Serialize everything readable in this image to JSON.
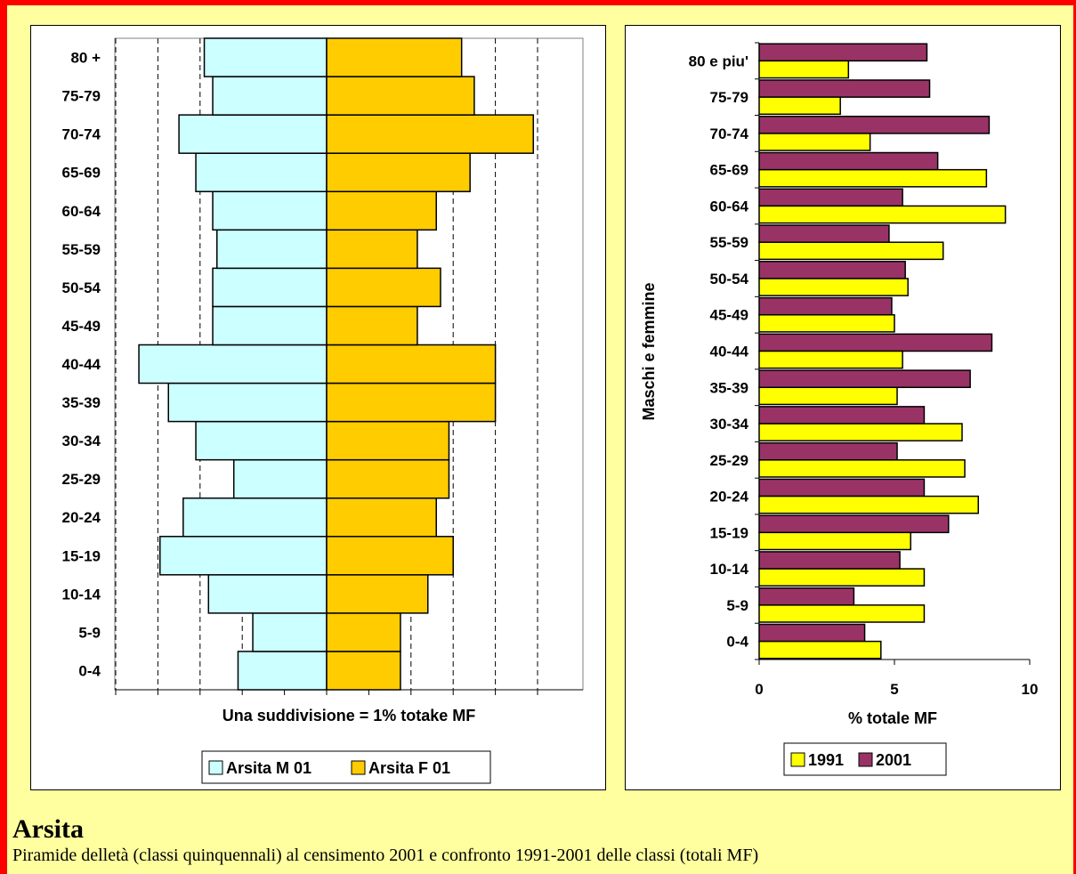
{
  "page": {
    "title": "Arsita",
    "subtitle": "Piramide delletà (classi quinquennali) al censimento 2001 e confronto 1991-2001 delle classi (totali MF)"
  },
  "colors": {
    "background": "#ffffa0",
    "border": "#ff0000",
    "male": "#ccffff",
    "female": "#ffcc00",
    "y1991": "#ffff00",
    "y2001": "#993366"
  },
  "chart_data": [
    {
      "type": "bar",
      "orientation": "horizontal",
      "layout": "population-pyramid",
      "categories": [
        "0-4",
        "5-9",
        "10-14",
        "15-19",
        "20-24",
        "25-29",
        "30-34",
        "35-39",
        "40-44",
        "45-49",
        "50-54",
        "55-59",
        "60-64",
        "65-69",
        "70-74",
        "75-79",
        "80 +"
      ],
      "series": [
        {
          "name": "Arsita M 01",
          "values": [
            2.1,
            1.75,
            2.8,
            3.95,
            3.4,
            2.2,
            3.1,
            3.75,
            4.45,
            2.7,
            2.7,
            2.6,
            2.7,
            3.1,
            3.5,
            2.7,
            2.9
          ]
        },
        {
          "name": "Arsita F 01",
          "values": [
            1.75,
            1.75,
            2.4,
            3.0,
            2.6,
            2.9,
            2.9,
            4.0,
            4.0,
            2.15,
            2.7,
            2.15,
            2.6,
            3.4,
            4.9,
            3.5,
            3.2
          ]
        }
      ],
      "xlabel": "Una suddivisione = 1% totake MF",
      "xlim": [
        -5,
        5
      ],
      "grid": "vertical dashed",
      "legend": "bottom"
    },
    {
      "type": "bar",
      "orientation": "horizontal",
      "categories": [
        "0-4",
        "5-9",
        "10-14",
        "15-19",
        "20-24",
        "25-29",
        "30-34",
        "35-39",
        "40-44",
        "45-49",
        "50-54",
        "55-59",
        "60-64",
        "65-69",
        "70-74",
        "75-79",
        "80 e piu'"
      ],
      "series": [
        {
          "name": "1991",
          "values": [
            4.5,
            6.1,
            6.1,
            5.6,
            8.1,
            7.6,
            7.5,
            5.1,
            5.3,
            5.0,
            5.5,
            6.8,
            9.1,
            8.4,
            4.1,
            3.0,
            3.3
          ]
        },
        {
          "name": "2001",
          "values": [
            3.9,
            3.5,
            5.2,
            7.0,
            6.1,
            5.1,
            6.1,
            7.8,
            8.6,
            4.9,
            5.4,
            4.8,
            5.3,
            6.6,
            8.5,
            6.3,
            6.2
          ]
        }
      ],
      "xlabel": "% totale MF",
      "ylabel": "Maschi e femmine",
      "xlim": [
        0,
        10
      ],
      "xticks": [
        "0",
        "5",
        "10"
      ],
      "grid": "none",
      "legend": "bottom"
    }
  ]
}
